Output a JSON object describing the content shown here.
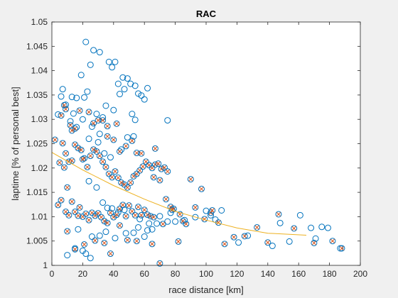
{
  "chart_data": {
    "type": "scatter",
    "title": "RAC",
    "xlabel": "race distance [km]",
    "ylabel": "laptime [% of personal best]",
    "xlim": [
      0,
      200
    ],
    "ylim": [
      1,
      1.05
    ],
    "xticks": [
      "0",
      "20",
      "40",
      "60",
      "80",
      "100",
      "120",
      "140",
      "160",
      "180",
      "200"
    ],
    "yticks": [
      "1",
      "1.005",
      "1.01",
      "1.015",
      "1.02",
      "1.025",
      "1.03",
      "1.035",
      "1.04",
      "1.045",
      "1.05"
    ],
    "grid": false,
    "legend": "none",
    "colors": {
      "circles": "#0072bd",
      "crosses": "#d95319",
      "fit": "#edb120"
    },
    "series": [
      {
        "marker": "circle-only",
        "points": [
          [
            22,
            1.0459
          ],
          [
            27,
            1.0442
          ],
          [
            31,
            1.0438
          ],
          [
            25,
            1.0412
          ],
          [
            37,
            1.0418
          ],
          [
            41,
            1.0418
          ],
          [
            46,
            1.0386
          ],
          [
            49,
            1.0384
          ],
          [
            43,
            1.0373
          ],
          [
            39,
            1.0407
          ],
          [
            47,
            1.0362
          ],
          [
            19,
            1.0391
          ],
          [
            23,
            1.0357
          ],
          [
            21,
            1.0345
          ],
          [
            51,
            1.0373
          ],
          [
            54,
            1.0369
          ],
          [
            56,
            1.0353
          ],
          [
            62,
            1.0364
          ],
          [
            60,
            1.0341
          ],
          [
            58,
            1.0349
          ],
          [
            44,
            1.0352
          ],
          [
            35,
            1.0328
          ],
          [
            29,
            1.0311
          ],
          [
            33,
            1.0304
          ],
          [
            40,
            1.0319
          ],
          [
            52,
            1.0311
          ],
          [
            54,
            1.0299
          ],
          [
            26,
            1.0285
          ],
          [
            31,
            1.027
          ],
          [
            75,
            1.0298
          ],
          [
            17,
            1.0074
          ],
          [
            10,
            1.0021
          ],
          [
            15,
            1.0035
          ],
          [
            20,
            1.003
          ],
          [
            22,
            1.0024
          ],
          [
            25,
            1.0015
          ],
          [
            4,
            1.031
          ],
          [
            6,
            1.0347
          ],
          [
            7,
            1.0362
          ],
          [
            13,
            1.0346
          ],
          [
            9,
            1.033
          ],
          [
            16,
            1.0344
          ],
          [
            14,
            1.0312
          ],
          [
            12,
            1.0296
          ],
          [
            20,
            1.03
          ],
          [
            16,
            1.0284
          ],
          [
            24,
            1.026
          ],
          [
            30,
            1.0253
          ],
          [
            34,
            1.023
          ],
          [
            38,
            1.0222
          ],
          [
            49,
            1.0263
          ],
          [
            53,
            1.0265
          ],
          [
            45,
            1.0238
          ],
          [
            24,
            1.0173
          ],
          [
            29,
            1.016
          ],
          [
            33,
            1.0129
          ],
          [
            39,
            1.0117
          ],
          [
            43,
            1.0109
          ],
          [
            36,
            1.0118
          ],
          [
            47,
            1.0114
          ],
          [
            56,
            1.0078
          ],
          [
            62,
            1.0072
          ],
          [
            68,
            1.0086
          ],
          [
            75,
            1.009
          ],
          [
            80,
            1.009
          ],
          [
            86,
            1.0093
          ],
          [
            93,
            1.0099
          ],
          [
            100,
            1.0112
          ],
          [
            103,
            1.0103
          ],
          [
            106,
            1.0094
          ],
          [
            110,
            1.0113
          ],
          [
            127,
            1.0061
          ],
          [
            121,
            1.0047
          ],
          [
            143,
            1.004
          ],
          [
            154,
            1.0049
          ],
          [
            168,
            1.0077
          ],
          [
            171,
            1.0055
          ],
          [
            175,
            1.0079
          ],
          [
            187,
            1.0035
          ],
          [
            179,
            1.0077
          ],
          [
            148,
            1.0087
          ],
          [
            161,
            1.0103
          ],
          [
            70,
            1.0101
          ],
          [
            77,
            1.0108
          ],
          [
            60,
            1.0059
          ],
          [
            65,
            1.0074
          ],
          [
            48,
            1.0066
          ],
          [
            53,
            1.0067
          ],
          [
            41,
            1.0056
          ],
          [
            31,
            1.0061
          ],
          [
            26,
            1.0059
          ],
          [
            35,
            1.0069
          ],
          [
            57,
            1.0095
          ],
          [
            63,
            1.0086
          ]
        ]
      },
      {
        "marker": "circle-with-cross",
        "points": [
          [
            2,
            1.0258
          ],
          [
            5,
            1.0211
          ],
          [
            8,
            1.0201
          ],
          [
            10,
            1.016
          ],
          [
            6,
            1.0134
          ],
          [
            4,
            1.0124
          ],
          [
            9,
            1.011
          ],
          [
            11,
            1.0103
          ],
          [
            13,
            1.0131
          ],
          [
            15,
            1.011
          ],
          [
            17,
            1.0102
          ],
          [
            18,
            1.0119
          ],
          [
            20,
            1.01
          ],
          [
            22,
            1.0106
          ],
          [
            24,
            1.0093
          ],
          [
            26,
            1.0108
          ],
          [
            28,
            1.0102
          ],
          [
            30,
            1.0107
          ],
          [
            32,
            1.0099
          ],
          [
            34,
            1.0091
          ],
          [
            36,
            1.0087
          ],
          [
            38,
            1.0108
          ],
          [
            40,
            1.0099
          ],
          [
            42,
            1.0104
          ],
          [
            44,
            1.0116
          ],
          [
            46,
            1.0124
          ],
          [
            48,
            1.0101
          ],
          [
            50,
            1.0123
          ],
          [
            52,
            1.0111
          ],
          [
            54,
            1.0103
          ],
          [
            56,
            1.012
          ],
          [
            58,
            1.0103
          ],
          [
            60,
            1.0114
          ],
          [
            62,
            1.0104
          ],
          [
            64,
            1.0101
          ],
          [
            66,
            1.0099
          ],
          [
            7,
            1.0251
          ],
          [
            9,
            1.023
          ],
          [
            11,
            1.0213
          ],
          [
            13,
            1.0215
          ],
          [
            15,
            1.0248
          ],
          [
            17,
            1.0241
          ],
          [
            19,
            1.0237
          ],
          [
            21,
            1.022
          ],
          [
            23,
            1.0202
          ],
          [
            25,
            1.0225
          ],
          [
            27,
            1.0238
          ],
          [
            29,
            1.0234
          ],
          [
            31,
            1.0225
          ],
          [
            33,
            1.0213
          ],
          [
            35,
            1.0202
          ],
          [
            37,
            1.0188
          ],
          [
            39,
            1.0181
          ],
          [
            41,
            1.0193
          ],
          [
            43,
            1.018
          ],
          [
            45,
            1.017
          ],
          [
            47,
            1.0166
          ],
          [
            49,
            1.016
          ],
          [
            51,
            1.017
          ],
          [
            53,
            1.0183
          ],
          [
            55,
            1.0188
          ],
          [
            57,
            1.0195
          ],
          [
            59,
            1.0203
          ],
          [
            61,
            1.0213
          ],
          [
            63,
            1.0206
          ],
          [
            65,
            1.02
          ],
          [
            67,
            1.0207
          ],
          [
            69,
            1.0209
          ],
          [
            71,
            1.0198
          ],
          [
            73,
            1.0201
          ],
          [
            75,
            1.0193
          ],
          [
            77,
            1.012
          ],
          [
            79,
            1.0116
          ],
          [
            83,
            1.0105
          ],
          [
            85,
            1.0091
          ],
          [
            87,
            1.0085
          ],
          [
            90,
            1.0177
          ],
          [
            97,
            1.0157
          ],
          [
            103,
            1.0108
          ],
          [
            108,
            1.0088
          ],
          [
            112,
            1.0044
          ],
          [
            118,
            1.0058
          ],
          [
            125,
            1.006
          ],
          [
            133,
            1.0078
          ],
          [
            140,
            1.0047
          ],
          [
            147,
            1.0105
          ],
          [
            157,
            1.0076
          ],
          [
            170,
            1.0046
          ],
          [
            182,
            1.005
          ],
          [
            188,
            1.0035
          ],
          [
            10,
            1.007
          ],
          [
            15,
            1.0033
          ],
          [
            21,
            1.0043
          ],
          [
            28,
            1.0051
          ],
          [
            34,
            1.0046
          ],
          [
            38,
            1.0024
          ],
          [
            44,
            1.0082
          ],
          [
            49,
            1.0052
          ],
          [
            55,
            1.005
          ],
          [
            65,
            1.0044
          ],
          [
            72,
            1.0085
          ],
          [
            82,
            1.0049
          ],
          [
            6,
            1.0308
          ],
          [
            9,
            1.0321
          ],
          [
            12,
            1.0288
          ],
          [
            15,
            1.0281
          ],
          [
            18,
            1.0318
          ],
          [
            24,
            1.0315
          ],
          [
            27,
            1.0292
          ],
          [
            30,
            1.0298
          ],
          [
            33,
            1.0298
          ],
          [
            36,
            1.0286
          ],
          [
            40,
            1.0258
          ],
          [
            44,
            1.0234
          ],
          [
            52,
            1.0256
          ],
          [
            55,
            1.0231
          ],
          [
            58,
            1.023
          ],
          [
            66,
            1.0181
          ],
          [
            70,
            1.0175
          ],
          [
            74,
            1.0136
          ],
          [
            78,
            1.0114
          ],
          [
            93,
            1.0119
          ],
          [
            99,
            1.0095
          ],
          [
            104,
            1.0113
          ],
          [
            70,
            1.0004
          ],
          [
            67,
            1.024
          ],
          [
            48,
            1.0245
          ],
          [
            8,
            1.0329
          ],
          [
            13,
            1.0277
          ],
          [
            20,
            1.0218
          ],
          [
            36,
            1.0265
          ],
          [
            42,
            1.0291
          ]
        ]
      }
    ],
    "fit": {
      "type": "quadratic",
      "x_range": [
        0,
        165
      ],
      "points": [
        [
          0,
          1.0232
        ],
        [
          20,
          1.0196
        ],
        [
          40,
          1.0164
        ],
        [
          60,
          1.0136
        ],
        [
          80,
          1.0111
        ],
        [
          100,
          1.0093
        ],
        [
          120,
          1.0077
        ],
        [
          140,
          1.0066
        ],
        [
          165,
          1.0062
        ]
      ]
    }
  }
}
